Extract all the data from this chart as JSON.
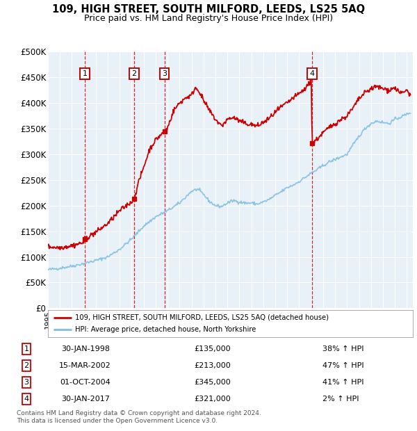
{
  "title": "109, HIGH STREET, SOUTH MILFORD, LEEDS, LS25 5AQ",
  "subtitle": "Price paid vs. HM Land Registry's House Price Index (HPI)",
  "xmin": 1995.0,
  "xmax": 2025.5,
  "ymin": 0,
  "ymax": 500000,
  "yticks": [
    0,
    50000,
    100000,
    150000,
    200000,
    250000,
    300000,
    350000,
    400000,
    450000,
    500000
  ],
  "ytick_labels": [
    "£0",
    "£50K",
    "£100K",
    "£150K",
    "£200K",
    "£250K",
    "£300K",
    "£350K",
    "£400K",
    "£450K",
    "£500K"
  ],
  "plot_bg": "#e8f0f8",
  "grid_color": "#ffffff",
  "hpi_color": "#7fbfdf",
  "price_color": "#cc0000",
  "vline_color": "#cc0000",
  "transactions": [
    {
      "num": 1,
      "date_x": 1998.08,
      "price": 135000,
      "label": "30-JAN-1998",
      "price_str": "£135,000",
      "pct": "38%",
      "dir": "↑"
    },
    {
      "num": 2,
      "date_x": 2002.21,
      "price": 213000,
      "label": "15-MAR-2002",
      "price_str": "£213,000",
      "pct": "47%",
      "dir": "↑"
    },
    {
      "num": 3,
      "date_x": 2004.75,
      "price": 345000,
      "label": "01-OCT-2004",
      "price_str": "£345,000",
      "pct": "41%",
      "dir": "↑"
    },
    {
      "num": 4,
      "date_x": 2017.08,
      "price": 321000,
      "label": "30-JAN-2017",
      "price_str": "£321,000",
      "pct": "2%",
      "dir": "↑"
    }
  ],
  "legend_line1": "109, HIGH STREET, SOUTH MILFORD, LEEDS, LS25 5AQ (detached house)",
  "legend_line2": "HPI: Average price, detached house, North Yorkshire",
  "footer1": "Contains HM Land Registry data © Crown copyright and database right 2024.",
  "footer2": "This data is licensed under the Open Government Licence v3.0.",
  "table_rows": [
    [
      "1",
      "30-JAN-1998",
      "£135,000",
      "38% ↑ HPI"
    ],
    [
      "2",
      "15-MAR-2002",
      "£213,000",
      "47% ↑ HPI"
    ],
    [
      "3",
      "01-OCT-2004",
      "£345,000",
      "41% ↑ HPI"
    ],
    [
      "4",
      "30-JAN-2017",
      "£321,000",
      "2% ↑ HPI"
    ]
  ]
}
